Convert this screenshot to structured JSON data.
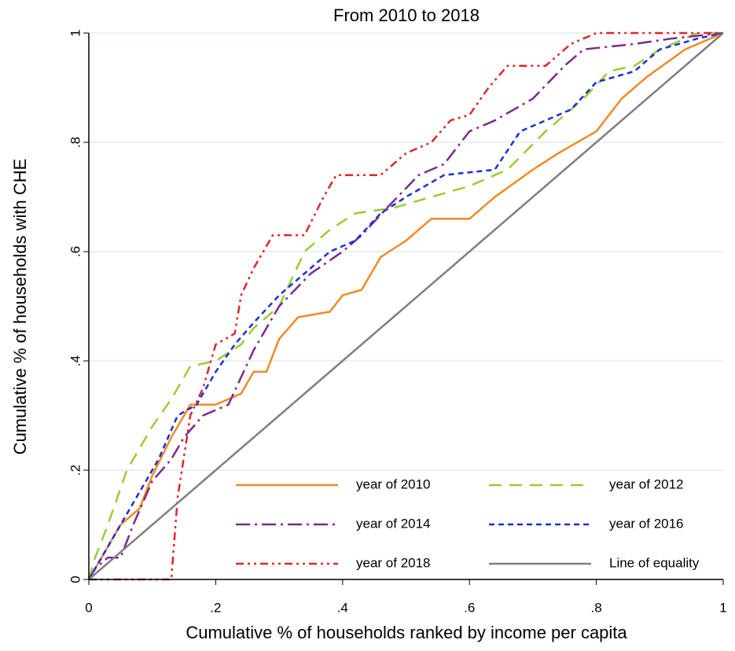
{
  "chart_data": {
    "type": "line",
    "title": "From 2010 to 2018",
    "x_label": "Cumulative % of households ranked by income per capita",
    "y_label": "Cumulative % of households with CHE",
    "xlim": [
      0,
      1
    ],
    "ylim": [
      0,
      1
    ],
    "xticks": [
      0,
      {
        "value": 0.2,
        "label": ".2"
      },
      {
        "value": 0.4,
        "label": ".4"
      },
      {
        "value": 0.6,
        "label": ".6"
      },
      {
        "value": 0.8,
        "label": ".8"
      },
      1
    ],
    "yticks": [
      0,
      {
        "value": 0.2,
        "label": ".2"
      },
      {
        "value": 0.4,
        "label": ".4"
      },
      {
        "value": 0.6,
        "label": ".6"
      },
      {
        "value": 0.8,
        "label": ".8"
      },
      1
    ],
    "grid": true,
    "series": [
      {
        "name": "year of 2010",
        "color": "#f28a22",
        "line_style": "solid",
        "x": [
          0,
          0.02,
          0.05,
          0.08,
          0.1,
          0.13,
          0.16,
          0.2,
          0.24,
          0.26,
          0.28,
          0.3,
          0.33,
          0.38,
          0.4,
          0.43,
          0.46,
          0.5,
          0.54,
          0.6,
          0.64,
          0.7,
          0.74,
          0.8,
          0.84,
          0.88,
          0.94,
          1
        ],
        "values": [
          0,
          0.04,
          0.1,
          0.13,
          0.19,
          0.26,
          0.32,
          0.32,
          0.34,
          0.38,
          0.38,
          0.44,
          0.48,
          0.49,
          0.52,
          0.53,
          0.59,
          0.62,
          0.66,
          0.66,
          0.7,
          0.75,
          0.78,
          0.82,
          0.88,
          0.92,
          0.97,
          1
        ]
      },
      {
        "name": "year of 2012",
        "color": "#9acd32",
        "line_style": "dash",
        "x": [
          0,
          0.01,
          0.03,
          0.06,
          0.1,
          0.13,
          0.16,
          0.2,
          0.24,
          0.26,
          0.3,
          0.34,
          0.38,
          0.42,
          0.48,
          0.54,
          0.6,
          0.66,
          0.72,
          0.78,
          0.82,
          0.86,
          0.9,
          0.96,
          1
        ],
        "values": [
          0,
          0.04,
          0.1,
          0.2,
          0.28,
          0.33,
          0.39,
          0.4,
          0.43,
          0.46,
          0.5,
          0.6,
          0.64,
          0.67,
          0.68,
          0.7,
          0.72,
          0.75,
          0.82,
          0.88,
          0.93,
          0.94,
          0.97,
          1,
          1
        ]
      },
      {
        "name": "year of 2014",
        "color": "#7b2b8a",
        "line_style": "dashdot",
        "x": [
          0,
          0.01,
          0.03,
          0.05,
          0.07,
          0.1,
          0.13,
          0.15,
          0.18,
          0.22,
          0.26,
          0.3,
          0.35,
          0.4,
          0.43,
          0.47,
          0.52,
          0.56,
          0.6,
          0.64,
          0.7,
          0.75,
          0.78,
          0.86,
          0.92,
          1
        ],
        "values": [
          0,
          0.02,
          0.04,
          0.04,
          0.1,
          0.18,
          0.22,
          0.26,
          0.3,
          0.32,
          0.42,
          0.5,
          0.56,
          0.6,
          0.63,
          0.68,
          0.74,
          0.76,
          0.82,
          0.84,
          0.88,
          0.94,
          0.97,
          0.98,
          0.99,
          1
        ]
      },
      {
        "name": "year of 2016",
        "color": "#1c2fd6",
        "line_style": "shortdash",
        "x": [
          0,
          0.02,
          0.05,
          0.08,
          0.11,
          0.14,
          0.17,
          0.2,
          0.23,
          0.26,
          0.3,
          0.34,
          0.38,
          0.42,
          0.46,
          0.5,
          0.56,
          0.64,
          0.68,
          0.72,
          0.76,
          0.8,
          0.86,
          0.9,
          0.96,
          1
        ],
        "values": [
          0,
          0.04,
          0.1,
          0.16,
          0.22,
          0.3,
          0.32,
          0.38,
          0.43,
          0.47,
          0.52,
          0.56,
          0.6,
          0.62,
          0.67,
          0.7,
          0.74,
          0.75,
          0.82,
          0.84,
          0.86,
          0.91,
          0.93,
          0.97,
          0.99,
          1
        ]
      },
      {
        "name": "year of 2018",
        "color": "#e0262a",
        "line_style": "dashdotdot",
        "x": [
          0,
          0.13,
          0.14,
          0.16,
          0.18,
          0.2,
          0.23,
          0.24,
          0.26,
          0.29,
          0.34,
          0.37,
          0.39,
          0.46,
          0.5,
          0.54,
          0.57,
          0.6,
          0.63,
          0.66,
          0.72,
          0.76,
          0.8,
          1
        ],
        "values": [
          0,
          0,
          0.15,
          0.3,
          0.35,
          0.43,
          0.45,
          0.52,
          0.57,
          0.63,
          0.63,
          0.7,
          0.74,
          0.74,
          0.78,
          0.8,
          0.84,
          0.85,
          0.9,
          0.94,
          0.94,
          0.98,
          1,
          1
        ]
      },
      {
        "name": "Line of equality",
        "color": "#808080",
        "line_style": "solid",
        "x": [
          0,
          1
        ],
        "values": [
          0,
          1
        ]
      }
    ]
  }
}
